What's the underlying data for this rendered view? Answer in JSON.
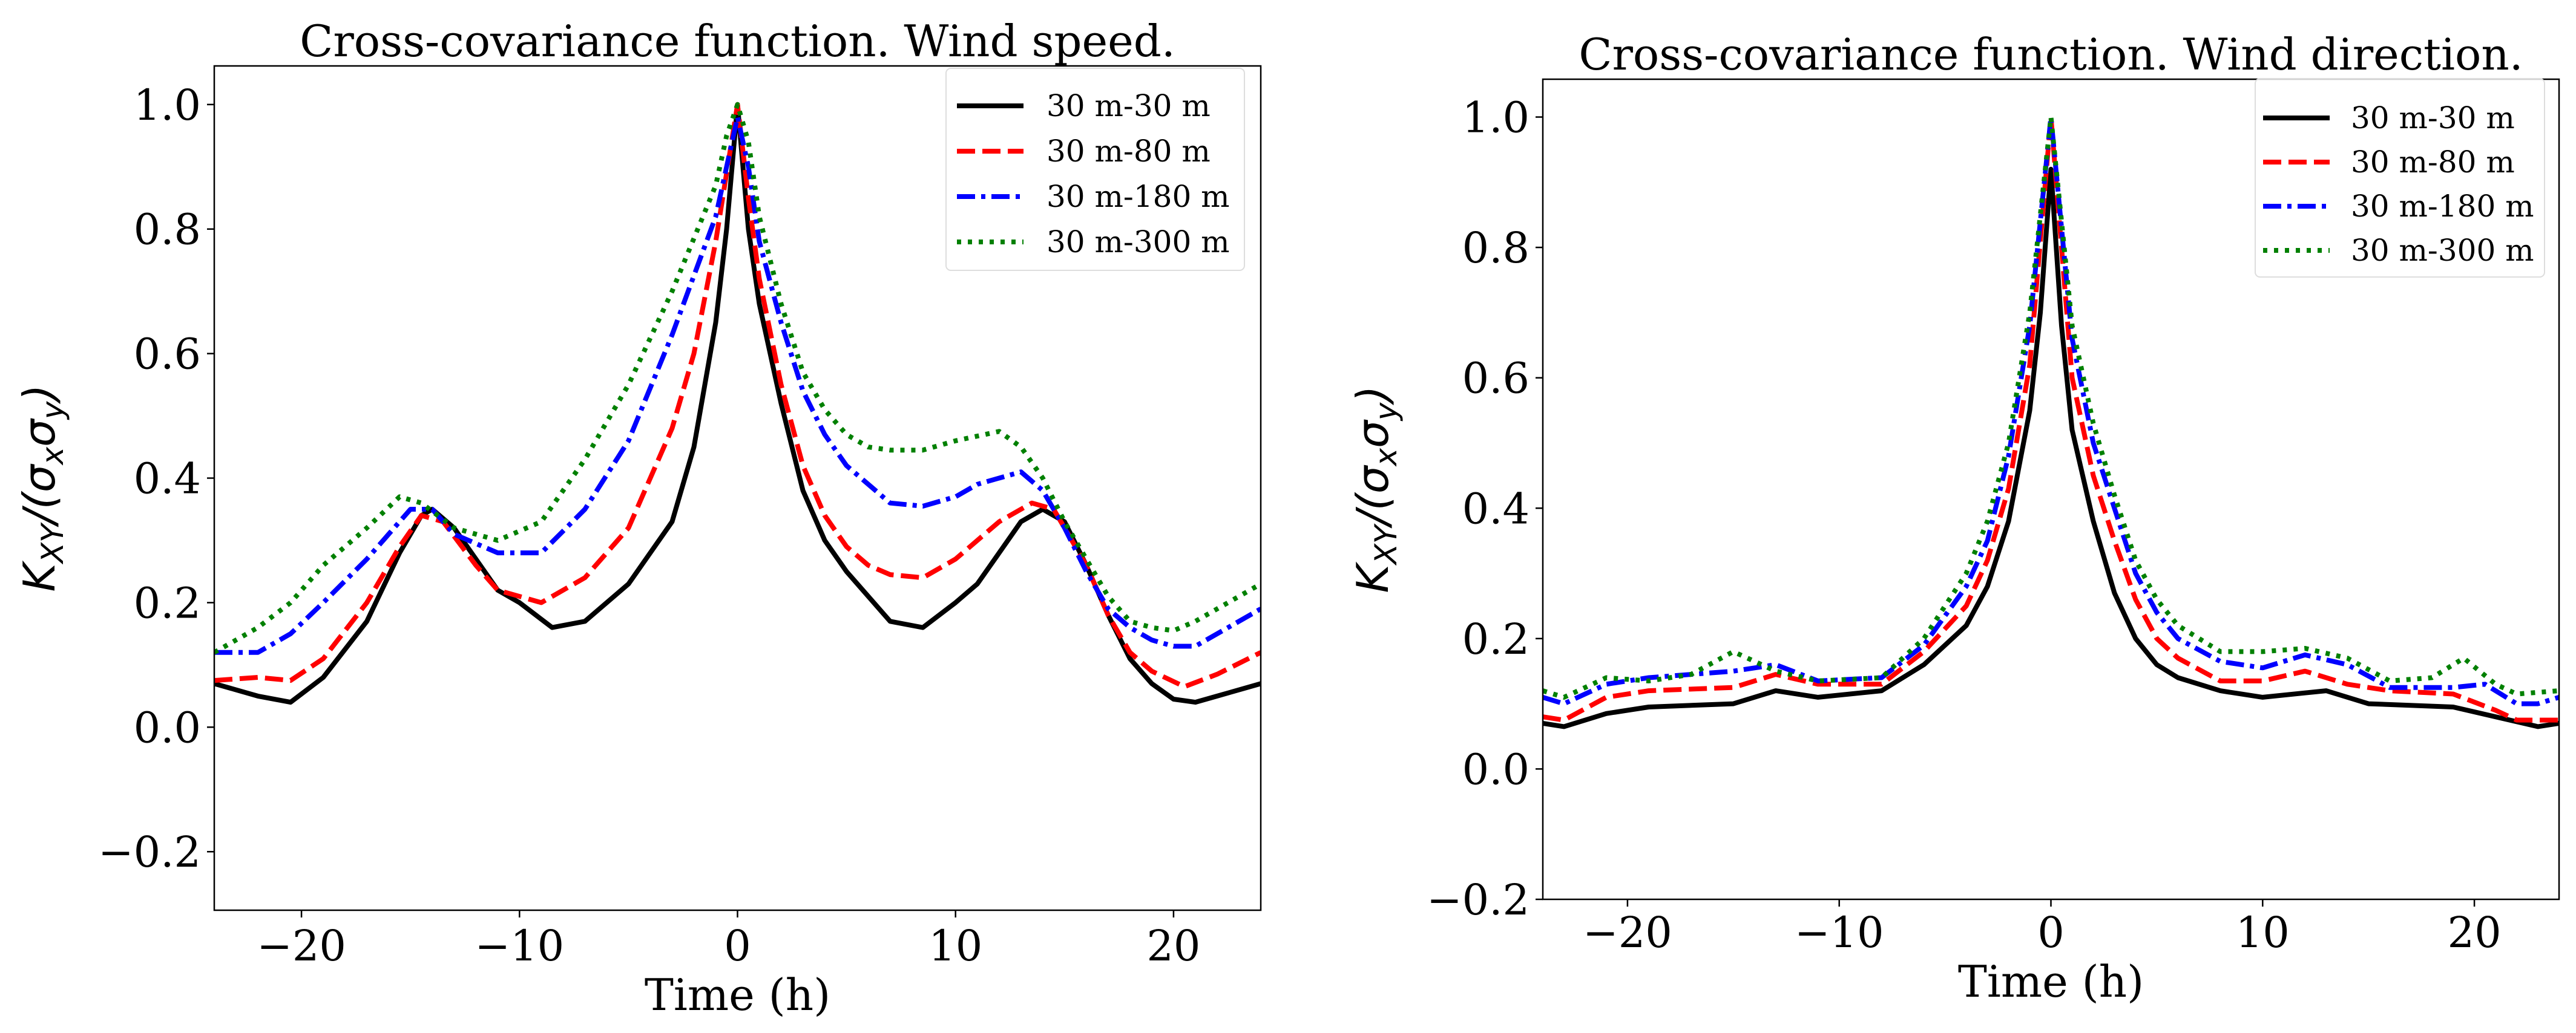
{
  "chart_data": [
    {
      "type": "line",
      "title": "Cross-covariance function. Wind speed.",
      "xlabel": "Time (h)",
      "ylabel": "K_XY/(σ_x σ_y)",
      "xlim": [
        -24,
        24
      ],
      "ylim": [
        -0.294,
        1.062
      ],
      "xticks": [
        -20,
        -10,
        0,
        10,
        20
      ],
      "xtick_labels": [
        "−20",
        "−10",
        "0",
        "10",
        "20"
      ],
      "yticks": [
        -0.2,
        0.0,
        0.2,
        0.4,
        0.6,
        0.8,
        1.0
      ],
      "ytick_labels": [
        "−0.2",
        "0.0",
        "0.2",
        "0.4",
        "0.6",
        "0.8",
        "1.0"
      ],
      "grid": false,
      "legend_position": "top-right",
      "series": [
        {
          "name": "30 m-30 m",
          "color": "#000000",
          "style": "solid",
          "x": [
            -24,
            -22,
            -20.5,
            -19,
            -17,
            -15.5,
            -14.5,
            -14,
            -13,
            -11,
            -10,
            -8.5,
            -7,
            -5,
            -3,
            -2,
            -1,
            -0.5,
            0,
            0.5,
            1,
            2,
            3,
            4,
            5,
            6,
            7,
            8.5,
            10,
            11,
            12,
            13,
            14,
            15,
            16,
            17,
            18,
            19,
            20,
            21,
            22,
            24
          ],
          "y": [
            0.07,
            0.05,
            0.04,
            0.08,
            0.17,
            0.28,
            0.34,
            0.35,
            0.32,
            0.22,
            0.2,
            0.16,
            0.17,
            0.23,
            0.33,
            0.45,
            0.65,
            0.8,
            1.0,
            0.8,
            0.68,
            0.52,
            0.38,
            0.3,
            0.25,
            0.21,
            0.17,
            0.16,
            0.2,
            0.23,
            0.28,
            0.33,
            0.35,
            0.33,
            0.26,
            0.18,
            0.11,
            0.07,
            0.045,
            0.04,
            0.05,
            0.07
          ]
        },
        {
          "name": "30 m-80 m",
          "color": "#ff0000",
          "style": "dashed",
          "x": [
            -24,
            -22,
            -20.5,
            -19,
            -17,
            -15.5,
            -14.5,
            -13.5,
            -12,
            -11,
            -9,
            -7,
            -5,
            -3,
            -2,
            -1,
            0,
            0.5,
            1,
            2,
            3,
            4,
            5,
            6,
            7,
            8.5,
            10,
            12,
            13.5,
            14.5,
            16,
            17,
            18,
            19,
            20.5,
            22,
            24
          ],
          "y": [
            0.075,
            0.08,
            0.075,
            0.11,
            0.2,
            0.29,
            0.34,
            0.33,
            0.26,
            0.22,
            0.2,
            0.24,
            0.32,
            0.48,
            0.6,
            0.78,
            1.0,
            0.85,
            0.72,
            0.55,
            0.42,
            0.34,
            0.29,
            0.26,
            0.245,
            0.24,
            0.27,
            0.33,
            0.36,
            0.35,
            0.26,
            0.18,
            0.12,
            0.09,
            0.065,
            0.085,
            0.12
          ]
        },
        {
          "name": "30 m-180 m",
          "color": "#0000ff",
          "style": "dashdot",
          "x": [
            -24,
            -22,
            -20.5,
            -19,
            -17,
            -15,
            -14,
            -13,
            -11,
            -9,
            -7,
            -5,
            -3,
            -1,
            0,
            0.5,
            1,
            2,
            3,
            4,
            5,
            6,
            7,
            8.5,
            10,
            11,
            13,
            14,
            15,
            16,
            17,
            18,
            19,
            20,
            21,
            22,
            24
          ],
          "y": [
            0.12,
            0.12,
            0.15,
            0.2,
            0.27,
            0.35,
            0.35,
            0.31,
            0.28,
            0.28,
            0.35,
            0.46,
            0.63,
            0.82,
            0.98,
            0.9,
            0.78,
            0.65,
            0.54,
            0.47,
            0.42,
            0.39,
            0.36,
            0.355,
            0.37,
            0.39,
            0.41,
            0.38,
            0.32,
            0.25,
            0.19,
            0.16,
            0.14,
            0.13,
            0.13,
            0.15,
            0.19
          ]
        },
        {
          "name": "30 m-300 m",
          "color": "#008000",
          "style": "dotted",
          "x": [
            -24,
            -22,
            -20.5,
            -19,
            -17,
            -15.5,
            -14.5,
            -13,
            -11,
            -9,
            -7,
            -5,
            -3,
            -1,
            -0.5,
            0,
            0.5,
            1,
            2,
            3,
            4,
            5,
            6,
            7,
            8.5,
            10,
            12,
            13,
            14,
            15,
            16,
            17,
            18,
            19,
            20,
            21,
            22,
            24
          ],
          "y": [
            0.12,
            0.16,
            0.2,
            0.26,
            0.32,
            0.37,
            0.36,
            0.32,
            0.3,
            0.33,
            0.43,
            0.55,
            0.7,
            0.87,
            0.95,
            1.0,
            0.94,
            0.82,
            0.68,
            0.57,
            0.51,
            0.47,
            0.45,
            0.445,
            0.445,
            0.46,
            0.475,
            0.45,
            0.4,
            0.33,
            0.27,
            0.21,
            0.17,
            0.16,
            0.155,
            0.17,
            0.19,
            0.23
          ]
        }
      ]
    },
    {
      "type": "line",
      "title": "Cross-covariance function. Wind direction.",
      "xlabel": "Time (h)",
      "ylabel": "K_XY/(σ_x σ_y)",
      "xlim": [
        -24,
        24
      ],
      "ylim": [
        -0.2,
        1.058
      ],
      "xticks": [
        -20,
        -10,
        0,
        10,
        20
      ],
      "xtick_labels": [
        "−20",
        "−10",
        "0",
        "10",
        "20"
      ],
      "yticks": [
        -0.2,
        0.0,
        0.2,
        0.4,
        0.6,
        0.8,
        1.0
      ],
      "ytick_labels": [
        "−0.2",
        "0.0",
        "0.2",
        "0.4",
        "0.6",
        "0.8",
        "1.0"
      ],
      "grid": false,
      "legend_position": "top-right",
      "series": [
        {
          "name": "30 m-30 m",
          "color": "#000000",
          "style": "solid",
          "x": [
            -24,
            -23,
            -21,
            -19,
            -15,
            -13,
            -11,
            -8,
            -6,
            -4,
            -3,
            -2,
            -1,
            -0.5,
            0,
            0.5,
            1,
            2,
            3,
            4,
            5,
            6,
            8,
            10,
            13,
            15,
            19,
            21,
            23,
            24
          ],
          "y": [
            0.07,
            0.065,
            0.085,
            0.095,
            0.1,
            0.12,
            0.11,
            0.12,
            0.16,
            0.22,
            0.28,
            0.38,
            0.55,
            0.7,
            0.92,
            0.68,
            0.52,
            0.38,
            0.27,
            0.2,
            0.16,
            0.14,
            0.12,
            0.11,
            0.12,
            0.1,
            0.095,
            0.08,
            0.065,
            0.07
          ]
        },
        {
          "name": "30 m-80 m",
          "color": "#ff0000",
          "style": "dashed",
          "x": [
            -24,
            -23,
            -21,
            -19,
            -15,
            -13,
            -11,
            -8,
            -6,
            -4,
            -3,
            -2,
            -1,
            0,
            1,
            2,
            3,
            4,
            5,
            6,
            8,
            10,
            12,
            14,
            16,
            19,
            21,
            22,
            24
          ],
          "y": [
            0.08,
            0.075,
            0.11,
            0.12,
            0.125,
            0.145,
            0.13,
            0.13,
            0.18,
            0.25,
            0.32,
            0.43,
            0.62,
            1.0,
            0.6,
            0.45,
            0.35,
            0.26,
            0.2,
            0.17,
            0.135,
            0.135,
            0.15,
            0.13,
            0.12,
            0.115,
            0.09,
            0.075,
            0.075
          ]
        },
        {
          "name": "30 m-180 m",
          "color": "#0000ff",
          "style": "dashdot",
          "x": [
            -24,
            -23,
            -21,
            -19,
            -15,
            -13,
            -11,
            -8,
            -6,
            -4,
            -3,
            -2,
            -1,
            0,
            1,
            2,
            3,
            4,
            5,
            6,
            8,
            10,
            12,
            14,
            16,
            19,
            20.5,
            22,
            23,
            24
          ],
          "y": [
            0.11,
            0.1,
            0.13,
            0.14,
            0.15,
            0.16,
            0.135,
            0.14,
            0.19,
            0.28,
            0.35,
            0.48,
            0.68,
            1.0,
            0.66,
            0.5,
            0.4,
            0.3,
            0.24,
            0.2,
            0.165,
            0.155,
            0.175,
            0.16,
            0.125,
            0.125,
            0.13,
            0.1,
            0.1,
            0.11
          ]
        },
        {
          "name": "30 m-300 m",
          "color": "#008000",
          "style": "dotted",
          "x": [
            -24,
            -23,
            -21,
            -19,
            -17,
            -15,
            -13,
            -11,
            -8,
            -6,
            -4,
            -3,
            -2,
            -1,
            0,
            1,
            2,
            3,
            4,
            5,
            6,
            8,
            10,
            12,
            14,
            16,
            18,
            19.5,
            21,
            22,
            24
          ],
          "y": [
            0.12,
            0.11,
            0.14,
            0.135,
            0.145,
            0.18,
            0.15,
            0.135,
            0.14,
            0.2,
            0.3,
            0.38,
            0.5,
            0.7,
            1.0,
            0.68,
            0.53,
            0.42,
            0.32,
            0.26,
            0.22,
            0.18,
            0.18,
            0.185,
            0.17,
            0.135,
            0.14,
            0.17,
            0.13,
            0.115,
            0.12
          ]
        }
      ]
    }
  ]
}
